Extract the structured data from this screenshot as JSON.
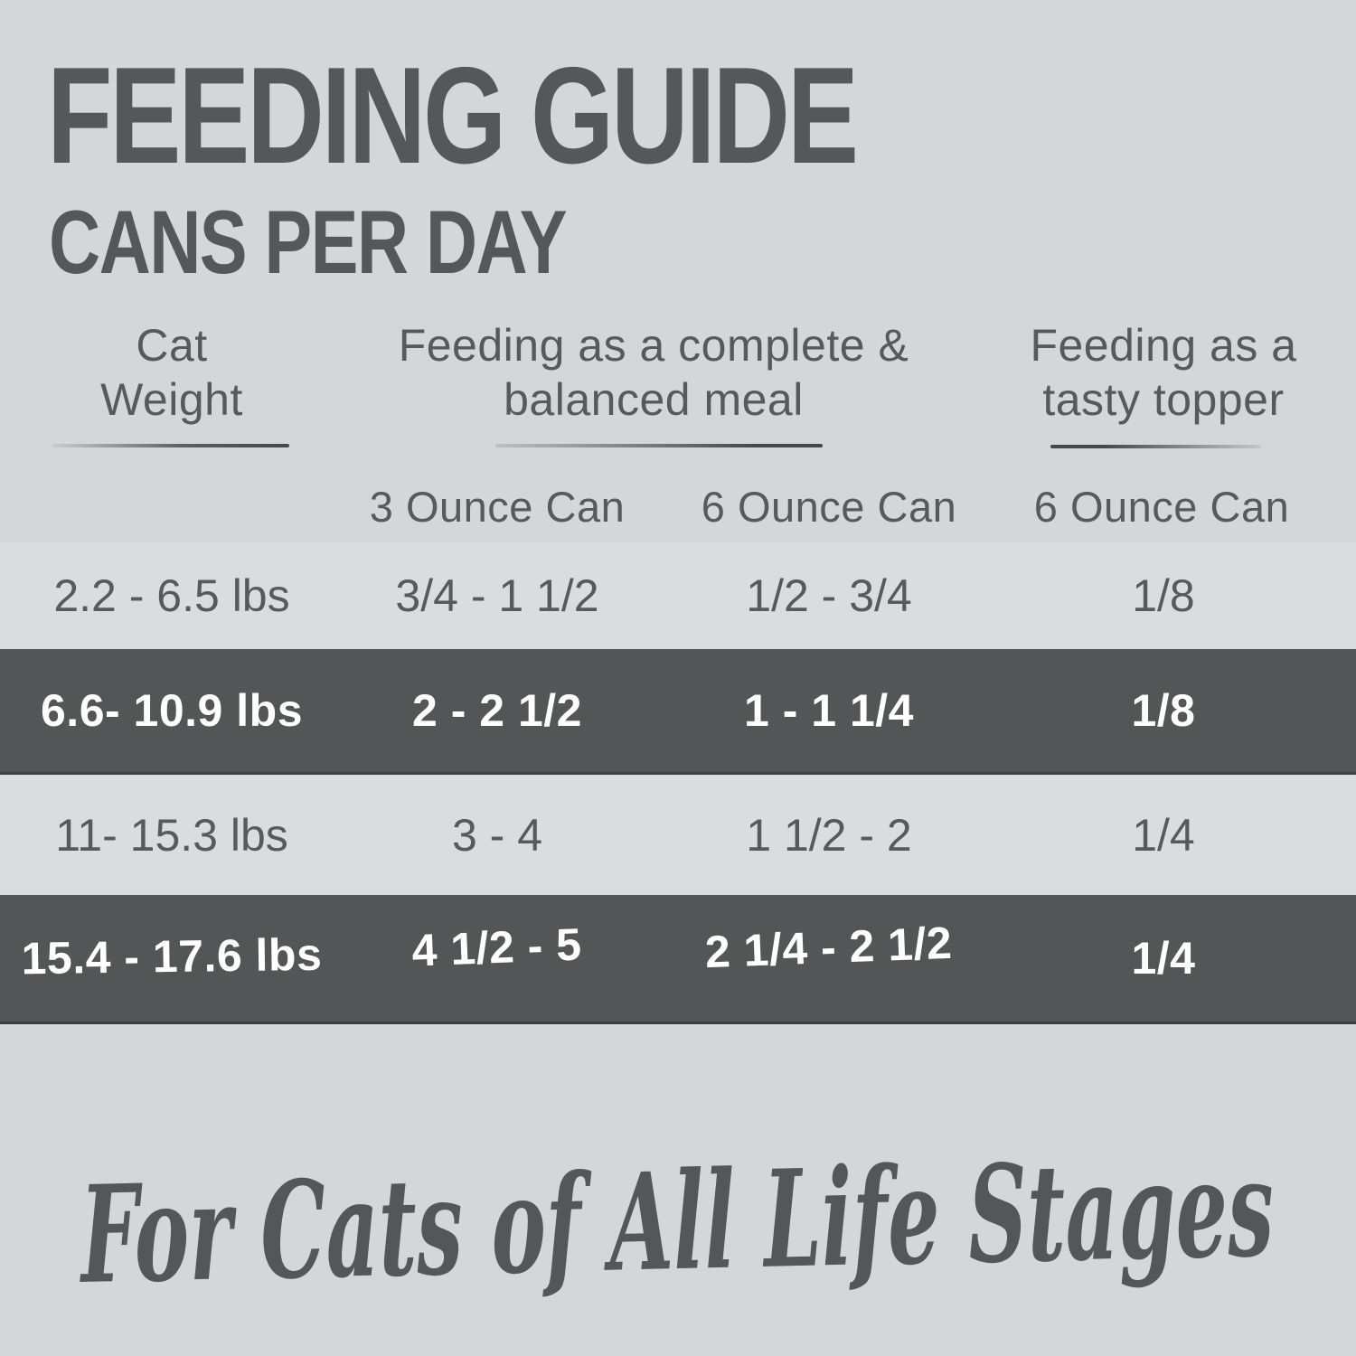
{
  "title": "FEEDING GUIDE",
  "subtitle": "CANS PER DAY",
  "headers": {
    "weight": {
      "line1": "Cat",
      "line2": "Weight"
    },
    "meal": {
      "line1": "Feeding as a complete &",
      "line2": "balanced meal"
    },
    "topper": {
      "line1": "Feeding as a",
      "line2": "tasty topper"
    }
  },
  "subheaders": {
    "meal_3oz": "3 Ounce Can",
    "meal_6oz": "6 Ounce Can",
    "topper_6oz": "6 Ounce Can"
  },
  "rows": [
    {
      "weight": "2.2 - 6.5 lbs",
      "three_oz": "3/4 - 1 1/2",
      "six_oz": "1/2 - 3/4",
      "topper": "1/8",
      "highlighted": false
    },
    {
      "weight": "6.6- 10.9 lbs",
      "three_oz": "2 - 2 1/2",
      "six_oz": "1 - 1 1/4",
      "topper": "1/8",
      "highlighted": true
    },
    {
      "weight": "11- 15.3 lbs",
      "three_oz": "3 - 4",
      "six_oz": "1 1/2 - 2",
      "topper": "1/4",
      "highlighted": false
    },
    {
      "weight": "15.4 - 17.6 lbs",
      "three_oz": "4 1/2 - 5",
      "six_oz": "2 1/4 - 2 1/2",
      "topper": "1/4",
      "highlighted": true
    }
  ],
  "footer": {
    "text": "For Cats of All Life Stages"
  },
  "colors": {
    "background": "#d5d6d8",
    "row_light": "#dbdcde",
    "row_dark": "#545557",
    "row_dark_border": "#3e3f41",
    "text_dark": "#58595b",
    "text_on_dark": "#ffffff",
    "underline": "#46474a"
  },
  "chart_data": {
    "type": "table",
    "title": "FEEDING GUIDE",
    "subtitle": "CANS PER DAY",
    "columns": [
      "Cat Weight",
      "Feeding as a complete & balanced meal — 3 Ounce Can",
      "Feeding as a complete & balanced meal — 6 Ounce Can",
      "Feeding as a tasty topper — 6 Ounce Can"
    ],
    "rows": [
      [
        "2.2 - 6.5 lbs",
        "3/4 - 1 1/2",
        "1/2 - 3/4",
        "1/8"
      ],
      [
        "6.6- 10.9 lbs",
        "2 - 2 1/2",
        "1 - 1 1/4",
        "1/8"
      ],
      [
        "11- 15.3 lbs",
        "3 - 4",
        "1 1/2 - 2",
        "1/4"
      ],
      [
        "15.4 - 17.6 lbs",
        "4 1/2 - 5",
        "2 1/4 - 2 1/2",
        "1/4"
      ]
    ],
    "highlighted_row_indices": [
      1,
      3
    ],
    "footnote": "For Cats of All Life Stages",
    "legend_position": "none",
    "grid": false
  }
}
